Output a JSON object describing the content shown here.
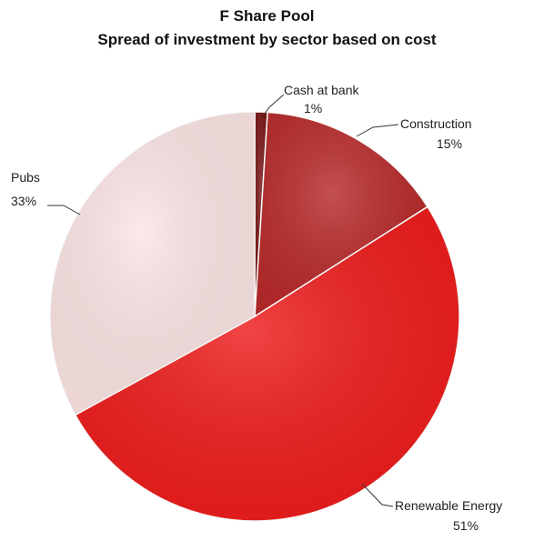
{
  "chart_data": {
    "type": "pie",
    "title": "F Share Pool",
    "subtitle": "Spread of investment by sector based on cost",
    "slices": [
      {
        "label": "Cash at bank",
        "value": 1,
        "value_label": "1%",
        "color": "#7a1616"
      },
      {
        "label": "Construction",
        "value": 15,
        "value_label": "15%",
        "color": "#b82a2a"
      },
      {
        "label": "Renewable Energy",
        "value": 51,
        "value_label": "51%",
        "color": "#ee1c1c"
      },
      {
        "label": "Pubs",
        "value": 33,
        "value_label": "33%",
        "color": "#fbe4e4"
      }
    ],
    "legend": "none",
    "data_labels": "outside-with-leader-lines"
  }
}
